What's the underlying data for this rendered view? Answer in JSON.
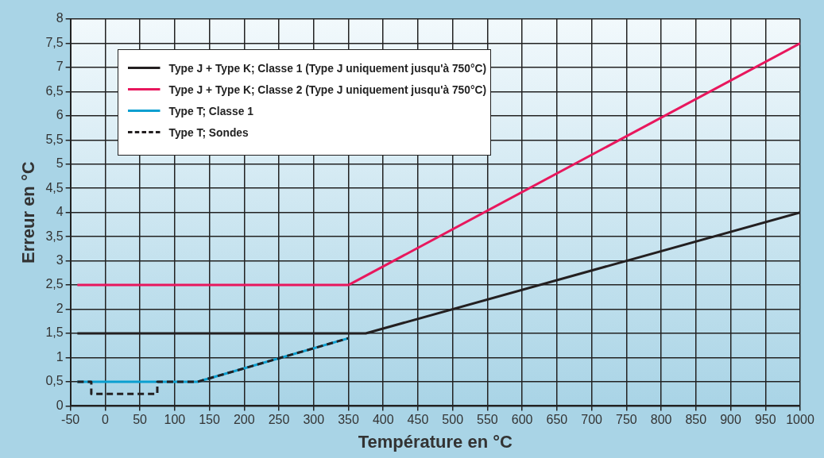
{
  "chart_data": {
    "type": "line",
    "xlabel": "Température en °C",
    "ylabel": "Erreur en °C",
    "xlim": [
      -50,
      1000
    ],
    "xticks": [
      -50,
      0,
      50,
      100,
      150,
      200,
      250,
      300,
      350,
      400,
      450,
      500,
      550,
      600,
      650,
      700,
      750,
      800,
      850,
      900,
      950,
      1000
    ],
    "ylim": [
      0,
      8
    ],
    "yticks": [
      0,
      {
        "value": 0.5,
        "label": "0,5"
      },
      1,
      {
        "value": 1.5,
        "label": "1,5"
      },
      2,
      {
        "value": 2.5,
        "label": "2,5"
      },
      3,
      {
        "value": 3.5,
        "label": "3,5"
      },
      4,
      {
        "value": 4.5,
        "label": "4,5"
      },
      5,
      {
        "value": 5.5,
        "label": "5,5"
      },
      6,
      {
        "value": 6.5,
        "label": "6,5"
      },
      7,
      {
        "value": 7.5,
        "label": "7,5"
      },
      8
    ],
    "grid": true,
    "legend": "top left",
    "marker": "none",
    "series": [
      {
        "name": "Type J + Type K; Classe 1 (Type J uniquement jusqu'à 750°C)",
        "color": "#231f20",
        "x": [
          -40,
          375,
          1000
        ],
        "values": [
          1.5,
          1.5,
          4
        ]
      },
      {
        "name": "Type J + Type K; Classe 2 (Type J uniquement jusqu'à 750°C)",
        "color": "#e8175d",
        "x": [
          -40,
          350,
          1000
        ],
        "values": [
          2.5,
          2.5,
          7.5
        ]
      },
      {
        "name": "Type T; Classe 1",
        "color": "#0a9fd0",
        "x": [
          -40,
          133,
          350
        ],
        "values": [
          0.5,
          0.5,
          1.4
        ]
      },
      {
        "name": "Type T; Sondes",
        "color": "#231f20",
        "line_style": "dashed",
        "x": [
          -40,
          -20,
          -20,
          75,
          75,
          133,
          350
        ],
        "values": [
          0.5,
          0.5,
          0.25,
          0.25,
          0.5,
          0.5,
          1.4
        ]
      }
    ]
  }
}
